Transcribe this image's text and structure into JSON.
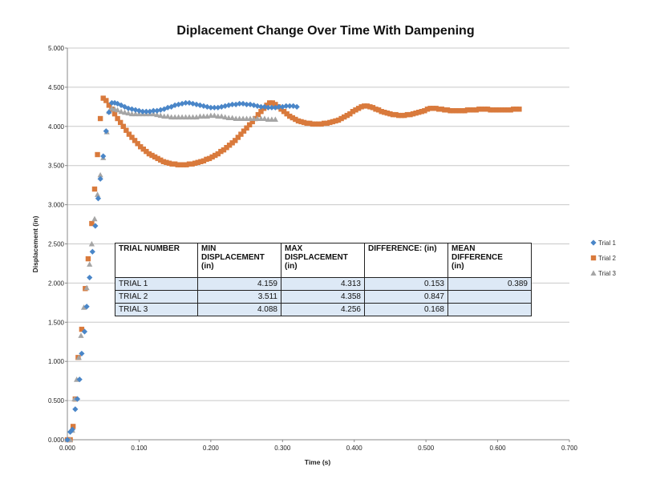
{
  "chart_data": {
    "type": "scatter",
    "title": "Diplacement Change Over Time With Dampening",
    "xlabel": "Time (s)",
    "ylabel": "Displacement (in)",
    "xlim": [
      0,
      0.7
    ],
    "ylim": [
      0,
      5
    ],
    "x_ticks": [
      "0.000",
      "0.100",
      "0.200",
      "0.300",
      "0.400",
      "0.500",
      "0.600",
      "0.700"
    ],
    "y_ticks": [
      "0.000",
      "0.500",
      "1.000",
      "1.500",
      "2.000",
      "2.500",
      "3.000",
      "3.500",
      "4.000",
      "4.500",
      "5.000"
    ],
    "grid": true,
    "legend_position": "right",
    "series": [
      {
        "name": "Trial 1",
        "color": "#4a86c8",
        "marker": "diamond",
        "points": [
          [
            0.0,
            0.0
          ],
          [
            0.004,
            0.1
          ],
          [
            0.007,
            0.13
          ],
          [
            0.011,
            0.39
          ],
          [
            0.014,
            0.52
          ],
          [
            0.017,
            0.77
          ],
          [
            0.02,
            1.1
          ],
          [
            0.024,
            1.38
          ],
          [
            0.027,
            1.7
          ],
          [
            0.031,
            2.07
          ],
          [
            0.035,
            2.4
          ],
          [
            0.039,
            2.73
          ],
          [
            0.043,
            3.08
          ],
          [
            0.046,
            3.33
          ],
          [
            0.05,
            3.62
          ],
          [
            0.054,
            3.94
          ],
          [
            0.058,
            4.18
          ],
          [
            0.062,
            4.3
          ],
          [
            0.066,
            4.3
          ],
          [
            0.07,
            4.29
          ],
          [
            0.075,
            4.27
          ],
          [
            0.08,
            4.25
          ],
          [
            0.085,
            4.23
          ],
          [
            0.09,
            4.22
          ],
          [
            0.095,
            4.21
          ],
          [
            0.1,
            4.2
          ],
          [
            0.105,
            4.19
          ],
          [
            0.11,
            4.19
          ],
          [
            0.115,
            4.19
          ],
          [
            0.12,
            4.2
          ],
          [
            0.125,
            4.2
          ],
          [
            0.13,
            4.21
          ],
          [
            0.135,
            4.22
          ],
          [
            0.14,
            4.24
          ],
          [
            0.145,
            4.25
          ],
          [
            0.15,
            4.27
          ],
          [
            0.155,
            4.28
          ],
          [
            0.16,
            4.29
          ],
          [
            0.165,
            4.3
          ],
          [
            0.17,
            4.3
          ],
          [
            0.175,
            4.29
          ],
          [
            0.18,
            4.28
          ],
          [
            0.185,
            4.27
          ],
          [
            0.19,
            4.26
          ],
          [
            0.195,
            4.25
          ],
          [
            0.2,
            4.24
          ],
          [
            0.205,
            4.24
          ],
          [
            0.21,
            4.24
          ],
          [
            0.215,
            4.25
          ],
          [
            0.22,
            4.26
          ],
          [
            0.225,
            4.27
          ],
          [
            0.23,
            4.28
          ],
          [
            0.235,
            4.28
          ],
          [
            0.24,
            4.29
          ],
          [
            0.245,
            4.29
          ],
          [
            0.25,
            4.28
          ],
          [
            0.255,
            4.28
          ],
          [
            0.26,
            4.27
          ],
          [
            0.265,
            4.26
          ],
          [
            0.27,
            4.25
          ],
          [
            0.275,
            4.25
          ],
          [
            0.28,
            4.24
          ],
          [
            0.285,
            4.24
          ],
          [
            0.29,
            4.24
          ],
          [
            0.295,
            4.25
          ],
          [
            0.3,
            4.25
          ],
          [
            0.305,
            4.26
          ],
          [
            0.31,
            4.26
          ],
          [
            0.315,
            4.26
          ],
          [
            0.32,
            4.25
          ]
        ]
      },
      {
        "name": "Trial 2",
        "color": "#d97a3c",
        "marker": "square",
        "points": [
          [
            0.0,
            0.0
          ],
          [
            0.004,
            0.0
          ],
          [
            0.008,
            0.17
          ],
          [
            0.011,
            0.52
          ],
          [
            0.015,
            1.05
          ],
          [
            0.02,
            1.41
          ],
          [
            0.025,
            1.93
          ],
          [
            0.029,
            2.31
          ],
          [
            0.034,
            2.76
          ],
          [
            0.038,
            3.2
          ],
          [
            0.042,
            3.64
          ],
          [
            0.046,
            4.1
          ],
          [
            0.05,
            4.36
          ],
          [
            0.054,
            4.33
          ],
          [
            0.058,
            4.27
          ],
          [
            0.062,
            4.22
          ],
          [
            0.066,
            4.16
          ],
          [
            0.07,
            4.1
          ],
          [
            0.074,
            4.05
          ],
          [
            0.078,
            4.0
          ],
          [
            0.082,
            3.95
          ],
          [
            0.086,
            3.9
          ],
          [
            0.09,
            3.86
          ],
          [
            0.094,
            3.82
          ],
          [
            0.098,
            3.78
          ],
          [
            0.102,
            3.74
          ],
          [
            0.106,
            3.71
          ],
          [
            0.11,
            3.68
          ],
          [
            0.114,
            3.65
          ],
          [
            0.118,
            3.63
          ],
          [
            0.122,
            3.61
          ],
          [
            0.126,
            3.59
          ],
          [
            0.13,
            3.57
          ],
          [
            0.134,
            3.55
          ],
          [
            0.138,
            3.54
          ],
          [
            0.142,
            3.53
          ],
          [
            0.146,
            3.52
          ],
          [
            0.15,
            3.52
          ],
          [
            0.154,
            3.51
          ],
          [
            0.158,
            3.51
          ],
          [
            0.162,
            3.51
          ],
          [
            0.166,
            3.51
          ],
          [
            0.17,
            3.52
          ],
          [
            0.174,
            3.52
          ],
          [
            0.178,
            3.53
          ],
          [
            0.182,
            3.54
          ],
          [
            0.186,
            3.55
          ],
          [
            0.19,
            3.56
          ],
          [
            0.194,
            3.58
          ],
          [
            0.198,
            3.59
          ],
          [
            0.202,
            3.61
          ],
          [
            0.206,
            3.63
          ],
          [
            0.21,
            3.65
          ],
          [
            0.214,
            3.68
          ],
          [
            0.218,
            3.7
          ],
          [
            0.222,
            3.73
          ],
          [
            0.226,
            3.76
          ],
          [
            0.23,
            3.79
          ],
          [
            0.234,
            3.82
          ],
          [
            0.238,
            3.86
          ],
          [
            0.242,
            3.9
          ],
          [
            0.246,
            3.94
          ],
          [
            0.25,
            3.98
          ],
          [
            0.254,
            4.02
          ],
          [
            0.258,
            4.06
          ],
          [
            0.262,
            4.1
          ],
          [
            0.266,
            4.15
          ],
          [
            0.27,
            4.19
          ],
          [
            0.274,
            4.23
          ],
          [
            0.278,
            4.27
          ],
          [
            0.282,
            4.3
          ],
          [
            0.286,
            4.3
          ],
          [
            0.29,
            4.28
          ],
          [
            0.294,
            4.25
          ],
          [
            0.298,
            4.22
          ],
          [
            0.302,
            4.19
          ],
          [
            0.306,
            4.16
          ],
          [
            0.31,
            4.13
          ],
          [
            0.314,
            4.11
          ],
          [
            0.318,
            4.09
          ],
          [
            0.322,
            4.07
          ],
          [
            0.326,
            4.06
          ],
          [
            0.33,
            4.05
          ],
          [
            0.334,
            4.04
          ],
          [
            0.338,
            4.04
          ],
          [
            0.342,
            4.03
          ],
          [
            0.346,
            4.03
          ],
          [
            0.35,
            4.03
          ],
          [
            0.354,
            4.03
          ],
          [
            0.358,
            4.04
          ],
          [
            0.362,
            4.04
          ],
          [
            0.366,
            4.05
          ],
          [
            0.37,
            4.06
          ],
          [
            0.374,
            4.07
          ],
          [
            0.378,
            4.08
          ],
          [
            0.382,
            4.1
          ],
          [
            0.386,
            4.12
          ],
          [
            0.39,
            4.14
          ],
          [
            0.394,
            4.16
          ],
          [
            0.398,
            4.19
          ],
          [
            0.402,
            4.21
          ],
          [
            0.406,
            4.23
          ],
          [
            0.41,
            4.25
          ],
          [
            0.414,
            4.26
          ],
          [
            0.418,
            4.26
          ],
          [
            0.422,
            4.25
          ],
          [
            0.426,
            4.24
          ],
          [
            0.43,
            4.22
          ],
          [
            0.434,
            4.21
          ],
          [
            0.438,
            4.19
          ],
          [
            0.442,
            4.18
          ],
          [
            0.446,
            4.17
          ],
          [
            0.45,
            4.16
          ],
          [
            0.454,
            4.15
          ],
          [
            0.458,
            4.15
          ],
          [
            0.462,
            4.14
          ],
          [
            0.466,
            4.14
          ],
          [
            0.47,
            4.14
          ],
          [
            0.474,
            4.15
          ],
          [
            0.478,
            4.15
          ],
          [
            0.482,
            4.16
          ],
          [
            0.486,
            4.17
          ],
          [
            0.49,
            4.18
          ],
          [
            0.494,
            4.19
          ],
          [
            0.498,
            4.2
          ],
          [
            0.502,
            4.22
          ],
          [
            0.506,
            4.23
          ],
          [
            0.51,
            4.23
          ],
          [
            0.514,
            4.23
          ],
          [
            0.518,
            4.22
          ],
          [
            0.522,
            4.22
          ],
          [
            0.526,
            4.21
          ],
          [
            0.53,
            4.21
          ],
          [
            0.534,
            4.2
          ],
          [
            0.538,
            4.2
          ],
          [
            0.542,
            4.2
          ],
          [
            0.546,
            4.2
          ],
          [
            0.55,
            4.2
          ],
          [
            0.554,
            4.2
          ],
          [
            0.558,
            4.21
          ],
          [
            0.562,
            4.21
          ],
          [
            0.566,
            4.21
          ],
          [
            0.57,
            4.21
          ],
          [
            0.574,
            4.22
          ],
          [
            0.578,
            4.22
          ],
          [
            0.582,
            4.22
          ],
          [
            0.586,
            4.22
          ],
          [
            0.59,
            4.21
          ],
          [
            0.594,
            4.21
          ],
          [
            0.598,
            4.21
          ],
          [
            0.602,
            4.21
          ],
          [
            0.606,
            4.21
          ],
          [
            0.61,
            4.21
          ],
          [
            0.614,
            4.21
          ],
          [
            0.618,
            4.21
          ],
          [
            0.622,
            4.22
          ],
          [
            0.626,
            4.22
          ],
          [
            0.63,
            4.22
          ]
        ]
      },
      {
        "name": "Trial 3",
        "color": "#a5a5a5",
        "marker": "triangle",
        "points": [
          [
            0.0,
            0.0
          ],
          [
            0.004,
            0.0
          ],
          [
            0.007,
            0.12
          ],
          [
            0.01,
            0.52
          ],
          [
            0.013,
            0.77
          ],
          [
            0.016,
            1.05
          ],
          [
            0.019,
            1.33
          ],
          [
            0.023,
            1.69
          ],
          [
            0.027,
            1.94
          ],
          [
            0.031,
            2.24
          ],
          [
            0.034,
            2.5
          ],
          [
            0.038,
            2.82
          ],
          [
            0.042,
            3.13
          ],
          [
            0.046,
            3.38
          ],
          [
            0.05,
            3.6
          ],
          [
            0.055,
            3.93
          ],
          [
            0.058,
            4.19
          ],
          [
            0.062,
            4.23
          ],
          [
            0.066,
            4.22
          ],
          [
            0.07,
            4.21
          ],
          [
            0.075,
            4.19
          ],
          [
            0.08,
            4.18
          ],
          [
            0.085,
            4.17
          ],
          [
            0.09,
            4.16
          ],
          [
            0.095,
            4.16
          ],
          [
            0.1,
            4.16
          ],
          [
            0.105,
            4.16
          ],
          [
            0.11,
            4.16
          ],
          [
            0.115,
            4.16
          ],
          [
            0.12,
            4.16
          ],
          [
            0.125,
            4.15
          ],
          [
            0.13,
            4.14
          ],
          [
            0.135,
            4.13
          ],
          [
            0.14,
            4.13
          ],
          [
            0.145,
            4.12
          ],
          [
            0.15,
            4.12
          ],
          [
            0.155,
            4.12
          ],
          [
            0.16,
            4.12
          ],
          [
            0.165,
            4.12
          ],
          [
            0.17,
            4.12
          ],
          [
            0.175,
            4.12
          ],
          [
            0.18,
            4.12
          ],
          [
            0.185,
            4.13
          ],
          [
            0.19,
            4.13
          ],
          [
            0.195,
            4.13
          ],
          [
            0.2,
            4.14
          ],
          [
            0.205,
            4.14
          ],
          [
            0.21,
            4.13
          ],
          [
            0.215,
            4.13
          ],
          [
            0.22,
            4.12
          ],
          [
            0.225,
            4.11
          ],
          [
            0.23,
            4.11
          ],
          [
            0.235,
            4.1
          ],
          [
            0.24,
            4.1
          ],
          [
            0.245,
            4.1
          ],
          [
            0.25,
            4.1
          ],
          [
            0.255,
            4.1
          ],
          [
            0.26,
            4.1
          ],
          [
            0.265,
            4.1
          ],
          [
            0.27,
            4.1
          ],
          [
            0.275,
            4.1
          ],
          [
            0.28,
            4.09
          ],
          [
            0.285,
            4.09
          ],
          [
            0.29,
            4.09
          ]
        ]
      }
    ],
    "table": {
      "headers": [
        [
          "TRIAL NUMBER"
        ],
        [
          "MIN",
          "DISPLACEMENT",
          "(in)"
        ],
        [
          "MAX",
          "DISPLACEMENT",
          "(in)"
        ],
        [
          "DIFFERENCE: (in)"
        ],
        [
          "MEAN DIFFERENCE",
          "(in)"
        ]
      ],
      "rows": [
        [
          "TRIAL 1",
          "4.159",
          "4.313",
          "0.153",
          "0.389"
        ],
        [
          "TRIAL 2",
          "3.511",
          "4.358",
          "0.847",
          ""
        ],
        [
          "TRIAL 3",
          "4.088",
          "4.256",
          "0.168",
          ""
        ]
      ]
    }
  }
}
